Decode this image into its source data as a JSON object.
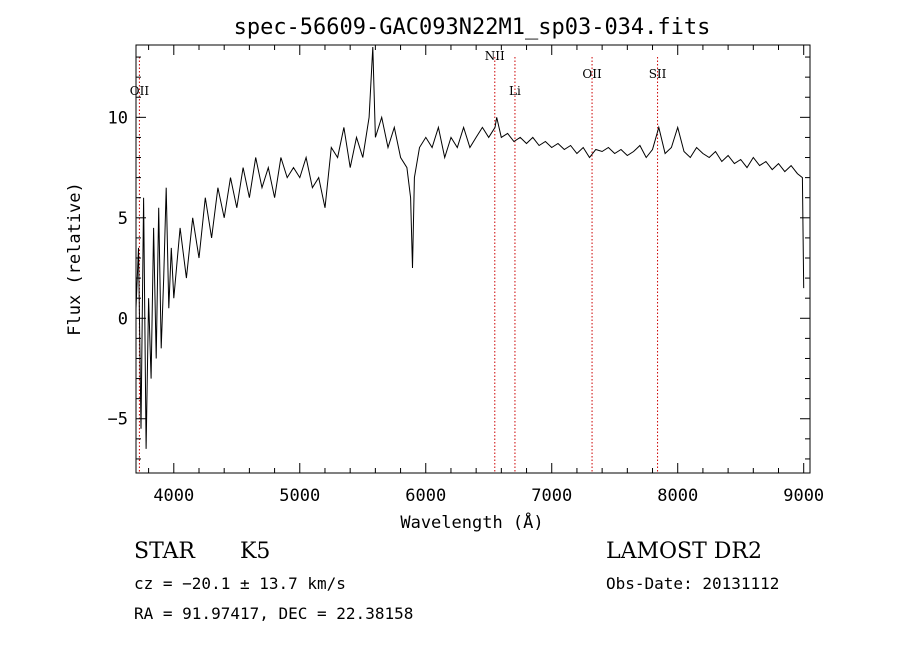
{
  "chart_data": {
    "type": "line",
    "title": "spec-56609-GAC093N22M1_sp03-034.fits",
    "xlabel": "Wavelength (Å)",
    "ylabel": "Flux (relative)",
    "xlim": [
      3700,
      9050
    ],
    "ylim": [
      -7.7,
      13.6
    ],
    "xticks": [
      4000,
      5000,
      6000,
      7000,
      8000,
      9000
    ],
    "yticks": [
      -5,
      0,
      5,
      10
    ],
    "xtick_labels": [
      "4000",
      "5000",
      "6000",
      "7000",
      "8000",
      "9000"
    ],
    "ytick_labels": [
      "−5",
      "0",
      "5",
      "10"
    ],
    "grid": false,
    "legend": "none",
    "series": [
      {
        "color": "#000000",
        "x": [
          3700,
          3720,
          3740,
          3760,
          3780,
          3800,
          3820,
          3840,
          3860,
          3880,
          3900,
          3920,
          3940,
          3960,
          3980,
          4000,
          4050,
          4100,
          4150,
          4200,
          4250,
          4300,
          4350,
          4400,
          4450,
          4500,
          4550,
          4600,
          4650,
          4700,
          4750,
          4800,
          4850,
          4900,
          4950,
          5000,
          5050,
          5100,
          5150,
          5200,
          5250,
          5300,
          5350,
          5400,
          5450,
          5500,
          5550,
          5580,
          5600,
          5650,
          5700,
          5750,
          5800,
          5850,
          5880,
          5895,
          5910,
          5950,
          6000,
          6050,
          6100,
          6150,
          6200,
          6250,
          6300,
          6350,
          6400,
          6450,
          6500,
          6550,
          6563,
          6600,
          6650,
          6700,
          6750,
          6800,
          6850,
          6900,
          6950,
          7000,
          7050,
          7100,
          7150,
          7200,
          7250,
          7300,
          7350,
          7400,
          7450,
          7500,
          7550,
          7600,
          7650,
          7700,
          7750,
          7800,
          7850,
          7900,
          7950,
          8000,
          8050,
          8100,
          8150,
          8200,
          8250,
          8300,
          8350,
          8400,
          8450,
          8500,
          8550,
          8600,
          8650,
          8700,
          8750,
          8800,
          8850,
          8900,
          8950,
          8990,
          9000
        ],
        "y": [
          0.5,
          3.5,
          -5.5,
          6.0,
          -6.5,
          1.0,
          -3.0,
          4.5,
          -2.0,
          5.5,
          -1.5,
          2.0,
          6.5,
          0.5,
          3.5,
          1.0,
          4.5,
          2.0,
          5.0,
          3.0,
          6.0,
          4.0,
          6.5,
          5.0,
          7.0,
          5.5,
          7.5,
          6.0,
          8.0,
          6.5,
          7.5,
          6.0,
          8.0,
          7.0,
          7.5,
          7.0,
          8.0,
          6.5,
          7.0,
          5.5,
          8.5,
          8.0,
          9.5,
          7.5,
          9.0,
          8.0,
          10.0,
          13.5,
          9.0,
          10.0,
          8.5,
          9.5,
          8.0,
          7.5,
          6.0,
          2.5,
          7.0,
          8.5,
          9.0,
          8.5,
          9.5,
          8.0,
          9.0,
          8.5,
          9.5,
          8.5,
          9.0,
          9.5,
          9.0,
          9.5,
          10.0,
          9.0,
          9.2,
          8.8,
          9.0,
          8.7,
          9.0,
          8.6,
          8.8,
          8.5,
          8.7,
          8.4,
          8.6,
          8.2,
          8.5,
          8.0,
          8.4,
          8.3,
          8.5,
          8.2,
          8.4,
          8.1,
          8.3,
          8.6,
          8.0,
          8.4,
          9.5,
          8.2,
          8.5,
          9.5,
          8.3,
          8.0,
          8.5,
          8.2,
          8.0,
          8.3,
          7.8,
          8.1,
          7.7,
          7.9,
          7.5,
          8.0,
          7.6,
          7.8,
          7.4,
          7.7,
          7.3,
          7.6,
          7.2,
          7.0,
          1.5
        ]
      }
    ],
    "annotations": [
      {
        "label": "OII",
        "x": 3727
      },
      {
        "label": "NII",
        "x": 6548
      },
      {
        "label": "Li",
        "x": 6708
      },
      {
        "label": "OII",
        "x": 7320
      },
      {
        "label": "SII",
        "x": 7840
      }
    ]
  },
  "footer": {
    "object": "STAR",
    "subclass": "K5",
    "survey": "LAMOST DR2",
    "cz": "cz = −20.1 ± 13.7 km/s",
    "obsdate": "Obs-Date: 20131112",
    "radec": "RA =  91.97417, DEC =  22.38158"
  }
}
